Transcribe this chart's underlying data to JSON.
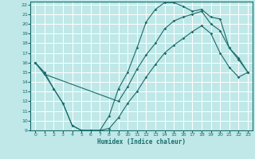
{
  "xlabel": "Humidex (Indice chaleur)",
  "xlim": [
    -0.5,
    23.5
  ],
  "ylim": [
    9,
    22.3
  ],
  "xticks": [
    0,
    1,
    2,
    3,
    4,
    5,
    6,
    7,
    8,
    9,
    10,
    11,
    12,
    13,
    14,
    15,
    16,
    17,
    18,
    19,
    20,
    21,
    22,
    23
  ],
  "yticks": [
    9,
    10,
    11,
    12,
    13,
    14,
    15,
    16,
    17,
    18,
    19,
    20,
    21,
    22
  ],
  "bg_color": "#c0e8e8",
  "line_color": "#1a6b6b",
  "grid_color": "#ffffff",
  "line1_x": [
    0,
    1,
    2,
    3,
    4,
    5,
    6,
    7,
    8,
    9,
    10,
    11,
    12,
    13,
    14,
    15,
    16,
    17,
    18,
    19,
    20,
    21,
    22,
    23
  ],
  "line1_y": [
    16.0,
    15.0,
    13.3,
    11.8,
    9.5,
    9.0,
    9.0,
    9.0,
    10.5,
    13.3,
    15.0,
    17.5,
    20.2,
    21.5,
    22.2,
    22.2,
    21.8,
    21.3,
    21.5,
    20.7,
    20.5,
    17.5,
    16.3,
    15.0
  ],
  "line2_x": [
    0,
    1,
    2,
    3,
    4,
    5,
    6,
    7,
    8,
    9,
    10,
    11,
    12,
    13,
    14,
    15,
    16,
    17,
    18,
    19,
    20,
    21,
    22,
    23
  ],
  "line2_y": [
    16.0,
    14.8,
    13.3,
    11.8,
    9.5,
    9.0,
    9.0,
    9.0,
    9.2,
    10.3,
    11.8,
    13.0,
    14.5,
    15.8,
    17.0,
    17.8,
    18.5,
    19.2,
    19.8,
    19.0,
    17.0,
    15.5,
    14.5,
    15.0
  ],
  "line3_x": [
    0,
    1,
    9,
    10,
    11,
    12,
    13,
    14,
    15,
    16,
    17,
    18,
    19,
    20,
    21,
    22,
    23
  ],
  "line3_y": [
    16.0,
    14.8,
    12.0,
    13.5,
    15.3,
    16.8,
    18.0,
    19.5,
    20.3,
    20.7,
    21.0,
    21.3,
    20.0,
    19.3,
    17.5,
    16.5,
    15.0
  ]
}
